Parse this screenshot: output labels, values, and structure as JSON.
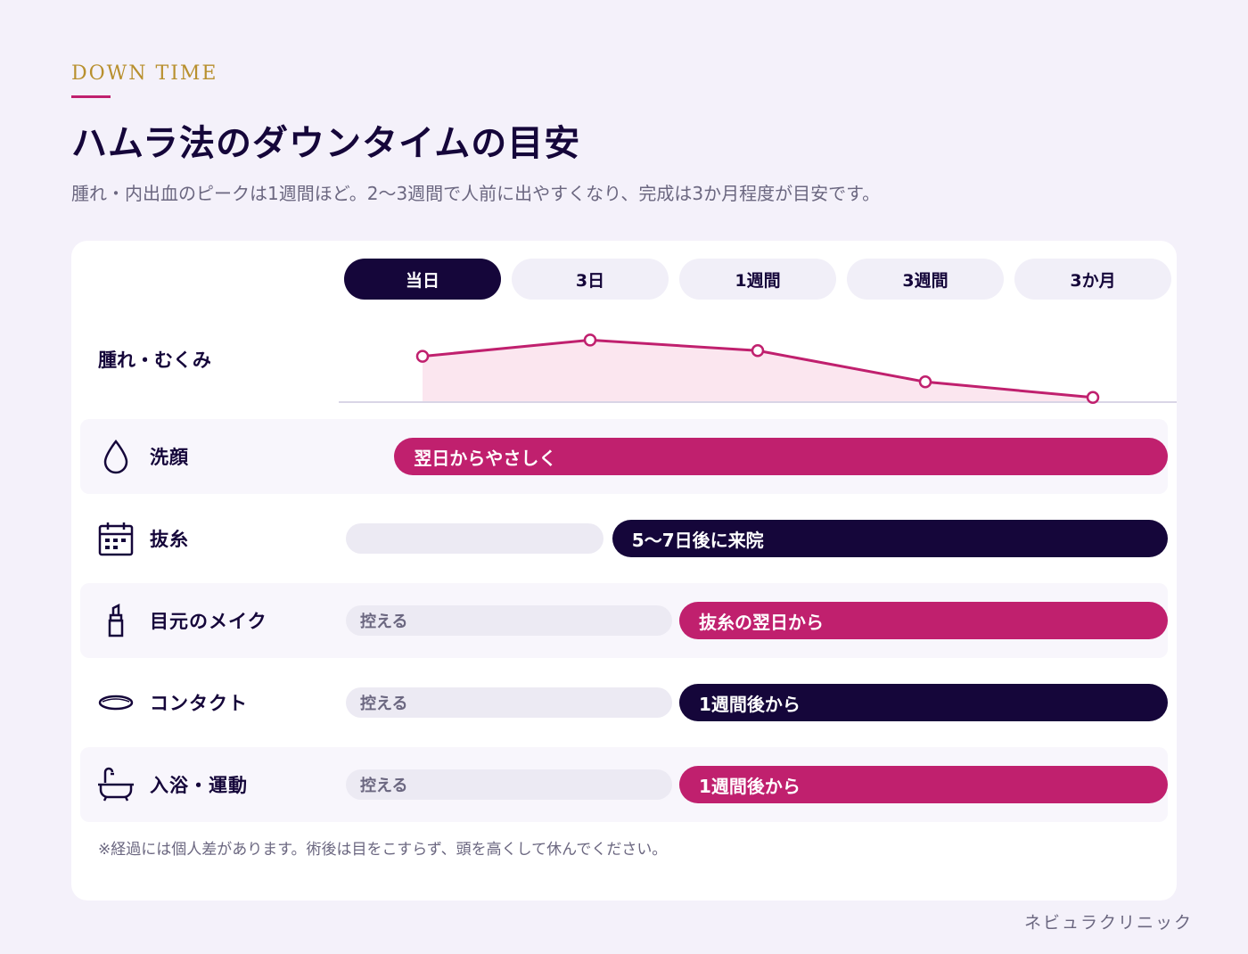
{
  "header": {
    "eyebrow": "DOWN TIME",
    "title": "ハムラ法のダウンタイムの目安",
    "subtitle": "腫れ・内出血のピークは1週間ほど。2〜3週間で人前に出やすくなり、完成は3か月程度が目安です。"
  },
  "colors": {
    "accent": "#c0206e",
    "navy": "#15063a",
    "gold": "#b8902e",
    "grey": "#eceaf3"
  },
  "chart_data": {
    "type": "line",
    "categories": [
      "当日",
      "3日",
      "1週間",
      "3週間",
      "3か月"
    ],
    "series": [
      {
        "name": "腫れ・むくみ",
        "values": [
          0.72,
          0.98,
          0.81,
          0.31,
          0.06
        ]
      }
    ],
    "ylim": [
      0,
      1
    ],
    "grid": false
  },
  "timeline": {
    "active_tab": 0,
    "rows": [
      {
        "label": "洗顔",
        "icon": "water-drop-icon",
        "grey": "",
        "grey_span": null,
        "bar": "翌日からやさしく",
        "bar_span": [
          0.3,
          5.0
        ],
        "color": "pink",
        "shaded": true
      },
      {
        "label": "抜糸",
        "icon": "calendar-icon",
        "grey": "",
        "grey_span": [
          0.0,
          1.55
        ],
        "bar": "5〜7日後に来院",
        "bar_span": [
          1.6,
          5.0
        ],
        "color": "navy",
        "shaded": false
      },
      {
        "label": "目元のメイク",
        "icon": "lipstick-icon",
        "grey": "控える",
        "grey_span": [
          0.0,
          1.96
        ],
        "bar": "抜糸の翌日から",
        "bar_span": [
          2.0,
          5.0
        ],
        "color": "pink",
        "shaded": true
      },
      {
        "label": "コンタクト",
        "icon": "contact-lens-icon",
        "grey": "控える",
        "grey_span": [
          0.0,
          1.96
        ],
        "bar": "1週間後から",
        "bar_span": [
          2.0,
          5.0
        ],
        "color": "navy",
        "shaded": false
      },
      {
        "label": "入浴・運動",
        "icon": "bathtub-icon",
        "grey": "控える",
        "grey_span": [
          0.0,
          1.96
        ],
        "bar": "1週間後から",
        "bar_span": [
          2.0,
          5.0
        ],
        "color": "pink",
        "shaded": true
      }
    ]
  },
  "note": "※経過には個人差があります。術後は目をこすらず、頭を高くして休んでください。",
  "footer": "ネビュラクリニック"
}
